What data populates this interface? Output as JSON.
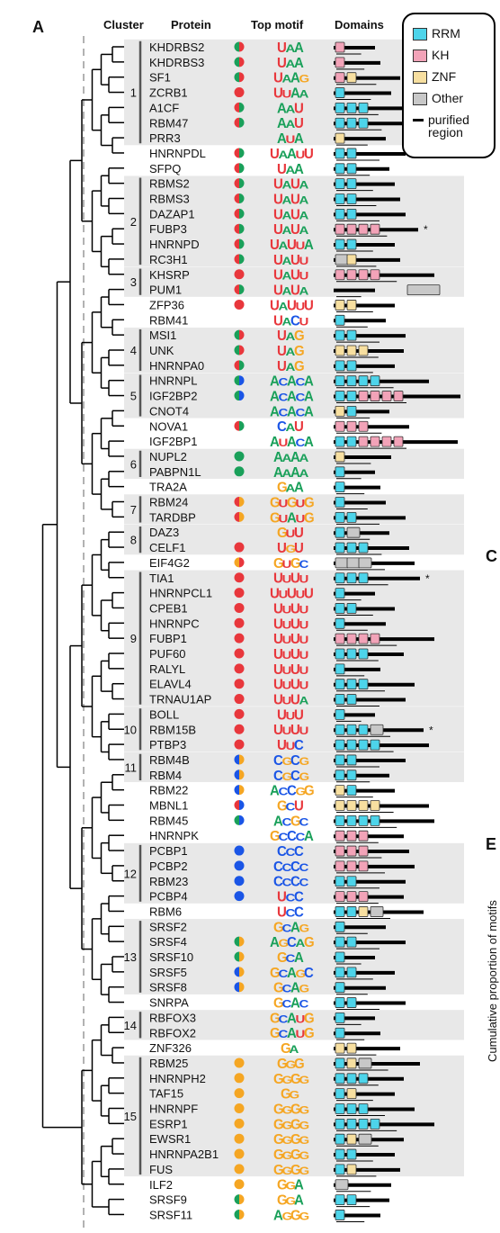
{
  "panels": {
    "a": "A",
    "c": "C",
    "e": "E"
  },
  "headers": {
    "cluster": "Cluster",
    "protein": "Protein",
    "motif": "Top motif",
    "domains": "Domains"
  },
  "legend": [
    {
      "key": "RRM",
      "label": "RRM",
      "color": "#4dd4ea"
    },
    {
      "key": "KH",
      "label": "KH",
      "color": "#f2a3b8"
    },
    {
      "key": "ZNF",
      "label": "ZNF",
      "color": "#f7dfa0"
    },
    {
      "key": "Other",
      "label": "Other",
      "color": "#c8c8c8"
    },
    {
      "key": "region",
      "label": "purified\nregion",
      "color": "#000000"
    }
  ],
  "right_axis_label": "Cumulative proportion of motifs",
  "dot_colors": {
    "r": "#e8373c",
    "g": "#1aa05a",
    "b": "#1a55e6",
    "o": "#f5a623"
  },
  "domain_colors": {
    "R": "#4dd4ea",
    "K": "#f2a3b8",
    "Z": "#f7dfa0",
    "O": "#c8c8c8",
    "P": "#c8c8c8"
  },
  "proteins": [
    {
      "name": "KHDRBS2",
      "motif": "UAA",
      "dots": [
        "g",
        "r"
      ],
      "dom": "K",
      "cluster": 1
    },
    {
      "name": "KHDRBS3",
      "motif": "UAA",
      "dots": [
        "g",
        "r"
      ],
      "dom": "K",
      "cluster": 1
    },
    {
      "name": "SF1",
      "motif": "UAAG",
      "dots": [
        "g",
        "r"
      ],
      "dom": "KZ",
      "cluster": 1
    },
    {
      "name": "ZCRB1",
      "motif": "UUAA",
      "dots": [
        "r",
        "r"
      ],
      "dom": "R",
      "cluster": 1
    },
    {
      "name": "A1CF",
      "motif": "AAU",
      "dots": [
        "r",
        "g"
      ],
      "dom": "RRR",
      "cluster": 1
    },
    {
      "name": "RBM47",
      "motif": "AAU",
      "dots": [
        "r",
        "g"
      ],
      "dom": "RRR",
      "cluster": 1
    },
    {
      "name": "PRR3",
      "motif": "AUA",
      "dots": [],
      "dom": "Z",
      "cluster": 1
    },
    {
      "name": "HNRNPDL",
      "motif": "UAAUU",
      "dots": [
        "r",
        "g"
      ],
      "dom": "RR",
      "cluster": 0
    },
    {
      "name": "SFPQ",
      "motif": "UAA",
      "dots": [
        "r",
        "g"
      ],
      "dom": "RR",
      "cluster": 0
    },
    {
      "name": "RBMS2",
      "motif": "UAUA",
      "dots": [
        "r",
        "g"
      ],
      "dom": "RR",
      "cluster": 2
    },
    {
      "name": "RBMS3",
      "motif": "UAUA",
      "dots": [
        "r",
        "g"
      ],
      "dom": "RR",
      "cluster": 2
    },
    {
      "name": "DAZAP1",
      "motif": "UAUA",
      "dots": [
        "r",
        "g"
      ],
      "dom": "RR",
      "cluster": 2
    },
    {
      "name": "FUBP3",
      "motif": "UAUA",
      "dots": [
        "r",
        "g"
      ],
      "dom": "KKKK",
      "cluster": 2,
      "star": true
    },
    {
      "name": "HNRNPD",
      "motif": "UAUUA",
      "dots": [
        "r",
        "g"
      ],
      "dom": "RR",
      "cluster": 2
    },
    {
      "name": "RC3H1",
      "motif": "UAUU",
      "dots": [
        "r",
        "g"
      ],
      "dom": "OZ",
      "cluster": 2
    },
    {
      "name": "KHSRP",
      "motif": "UAUU",
      "dots": [
        "r"
      ],
      "dom": "KKKK",
      "cluster": 3
    },
    {
      "name": "PUM1",
      "motif": "UAUA",
      "dots": [
        "r",
        "g"
      ],
      "dom": "P",
      "cluster": 3
    },
    {
      "name": "ZFP36",
      "motif": "UAUUU",
      "dots": [
        "r"
      ],
      "dom": "ZZ",
      "cluster": 0
    },
    {
      "name": "RBM41",
      "motif": "UACU",
      "dots": [],
      "dom": "R",
      "cluster": 0
    },
    {
      "name": "MSI1",
      "motif": "UAG",
      "dots": [
        "g",
        "r"
      ],
      "dom": "RR",
      "cluster": 4
    },
    {
      "name": "UNK",
      "motif": "UAG",
      "dots": [
        "g",
        "r"
      ],
      "dom": "ZZZ",
      "cluster": 4
    },
    {
      "name": "HNRNPA0",
      "motif": "UAG",
      "dots": [
        "r",
        "g"
      ],
      "dom": "RR",
      "cluster": 4
    },
    {
      "name": "HNRNPL",
      "motif": "ACACA",
      "dots": [
        "g",
        "b"
      ],
      "dom": "RRRR",
      "cluster": 5
    },
    {
      "name": "IGF2BP2",
      "motif": "ACACA",
      "dots": [
        "g",
        "b"
      ],
      "dom": "RRKKKK",
      "cluster": 5
    },
    {
      "name": "CNOT4",
      "motif": "ACACA",
      "dots": [],
      "dom": "ZR",
      "cluster": 5
    },
    {
      "name": "NOVA1",
      "motif": "CAU",
      "dots": [
        "r",
        "g"
      ],
      "dom": "KKK",
      "cluster": 0
    },
    {
      "name": "IGF2BP1",
      "motif": "AUACA",
      "dots": [],
      "dom": "RRKKKK",
      "cluster": 0
    },
    {
      "name": "NUPL2",
      "motif": "AAAA",
      "dots": [
        "g"
      ],
      "dom": "Z",
      "cluster": 6
    },
    {
      "name": "PABPN1L",
      "motif": "AAAA",
      "dots": [
        "g"
      ],
      "dom": "R",
      "cluster": 6
    },
    {
      "name": "TRA2A",
      "motif": "GAA",
      "dots": [],
      "dom": "R",
      "cluster": 0
    },
    {
      "name": "RBM24",
      "motif": "GUGUG",
      "dots": [
        "r",
        "o"
      ],
      "dom": "R",
      "cluster": 7
    },
    {
      "name": "TARDBP",
      "motif": "GUAUG",
      "dots": [
        "r",
        "o"
      ],
      "dom": "RR",
      "cluster": 7
    },
    {
      "name": "DAZ3",
      "motif": "GUU",
      "dots": [],
      "dom": "RO",
      "cluster": 8
    },
    {
      "name": "CELF1",
      "motif": "UGU",
      "dots": [
        "r"
      ],
      "dom": "RRR",
      "cluster": 8
    },
    {
      "name": "EIF4G2",
      "motif": "GUGC",
      "dots": [
        "o",
        "r"
      ],
      "dom": "OOO",
      "cluster": 0
    },
    {
      "name": "TIA1",
      "motif": "UUUU",
      "dots": [
        "r"
      ],
      "dom": "RRR",
      "cluster": 9,
      "star": true
    },
    {
      "name": "HNRNPCL1",
      "motif": "UUUUU",
      "dots": [
        "r"
      ],
      "dom": "R",
      "cluster": 9
    },
    {
      "name": "CPEB1",
      "motif": "UUUU",
      "dots": [
        "r"
      ],
      "dom": "RR",
      "cluster": 9
    },
    {
      "name": "HNRNPC",
      "motif": "UUUU",
      "dots": [
        "r"
      ],
      "dom": "R",
      "cluster": 9
    },
    {
      "name": "FUBP1",
      "motif": "UUUU",
      "dots": [
        "r"
      ],
      "dom": "KKKK",
      "cluster": 9
    },
    {
      "name": "PUF60",
      "motif": "UUUU",
      "dots": [
        "r"
      ],
      "dom": "RRR",
      "cluster": 9
    },
    {
      "name": "RALYL",
      "motif": "UUUU",
      "dots": [
        "r"
      ],
      "dom": "R",
      "cluster": 9
    },
    {
      "name": "ELAVL4",
      "motif": "UUUU",
      "dots": [
        "r"
      ],
      "dom": "RRR",
      "cluster": 9
    },
    {
      "name": "TRNAU1AP",
      "motif": "UUUA",
      "dots": [
        "r"
      ],
      "dom": "RR",
      "cluster": 9
    },
    {
      "name": "BOLL",
      "motif": "UUU",
      "dots": [
        "r"
      ],
      "dom": "R",
      "cluster": 10
    },
    {
      "name": "RBM15B",
      "motif": "UUUU",
      "dots": [
        "r"
      ],
      "dom": "RRRO",
      "cluster": 10,
      "star": true
    },
    {
      "name": "PTBP3",
      "motif": "UUC",
      "dots": [
        "r"
      ],
      "dom": "RRRR",
      "cluster": 10
    },
    {
      "name": "RBM4B",
      "motif": "CGCG",
      "dots": [
        "b",
        "o"
      ],
      "dom": "RR",
      "cluster": 11
    },
    {
      "name": "RBM4",
      "motif": "CGCG",
      "dots": [
        "b",
        "o"
      ],
      "dom": "RR",
      "cluster": 11
    },
    {
      "name": "RBM22",
      "motif": "ACCGG",
      "dots": [
        "b",
        "o"
      ],
      "dom": "ZR",
      "cluster": 0
    },
    {
      "name": "MBNL1",
      "motif": "GCU",
      "dots": [
        "r",
        "b"
      ],
      "dom": "ZZZZ",
      "cluster": 0
    },
    {
      "name": "RBM45",
      "motif": "ACGC",
      "dots": [
        "g",
        "b"
      ],
      "dom": "RRRR",
      "cluster": 0
    },
    {
      "name": "HNRNPK",
      "motif": "GCCCA",
      "dots": [],
      "dom": "KKK",
      "cluster": 0
    },
    {
      "name": "PCBP1",
      "motif": "CCC",
      "dots": [
        "b"
      ],
      "dom": "KKK",
      "cluster": 12
    },
    {
      "name": "PCBP2",
      "motif": "CCCC",
      "dots": [
        "b"
      ],
      "dom": "KKK",
      "cluster": 12
    },
    {
      "name": "RBM23",
      "motif": "CCCC",
      "dots": [
        "b"
      ],
      "dom": "RR",
      "cluster": 12
    },
    {
      "name": "PCBP4",
      "motif": "UCC",
      "dots": [
        "b"
      ],
      "dom": "KKK",
      "cluster": 12
    },
    {
      "name": "RBM6",
      "motif": "UCC",
      "dots": [],
      "dom": "RRZO",
      "cluster": 0
    },
    {
      "name": "SRSF2",
      "motif": "GCAG",
      "dots": [],
      "dom": "R",
      "cluster": 13
    },
    {
      "name": "SRSF4",
      "motif": "AGCAG",
      "dots": [
        "g",
        "o"
      ],
      "dom": "RR",
      "cluster": 13
    },
    {
      "name": "SRSF10",
      "motif": "GCA",
      "dots": [
        "g",
        "o"
      ],
      "dom": "R",
      "cluster": 13
    },
    {
      "name": "SRSF5",
      "motif": "GCAGC",
      "dots": [
        "b",
        "o"
      ],
      "dom": "RR",
      "cluster": 13
    },
    {
      "name": "SRSF8",
      "motif": "GCAG",
      "dots": [
        "b",
        "o"
      ],
      "dom": "R",
      "cluster": 13
    },
    {
      "name": "SNRPA",
      "motif": "GCAC",
      "dots": [],
      "dom": "RR",
      "cluster": 0
    },
    {
      "name": "RBFOX3",
      "motif": "GCAUG",
      "dots": [],
      "dom": "R",
      "cluster": 14
    },
    {
      "name": "RBFOX2",
      "motif": "GCAUG",
      "dots": [],
      "dom": "R",
      "cluster": 14
    },
    {
      "name": "ZNF326",
      "motif": "GA",
      "dots": [],
      "dom": "ZZ",
      "cluster": 0
    },
    {
      "name": "RBM25",
      "motif": "GGG",
      "dots": [
        "o"
      ],
      "dom": "RZO",
      "cluster": 15
    },
    {
      "name": "HNRNPH2",
      "motif": "GGGG",
      "dots": [
        "o"
      ],
      "dom": "RRR",
      "cluster": 15
    },
    {
      "name": "TAF15",
      "motif": "GG",
      "dots": [
        "o"
      ],
      "dom": "RZ",
      "cluster": 15
    },
    {
      "name": "HNRNPF",
      "motif": "GGGG",
      "dots": [
        "o"
      ],
      "dom": "RRR",
      "cluster": 15
    },
    {
      "name": "ESRP1",
      "motif": "GGGG",
      "dots": [
        "o"
      ],
      "dom": "RRRR",
      "cluster": 15
    },
    {
      "name": "EWSR1",
      "motif": "GGGG",
      "dots": [
        "o"
      ],
      "dom": "RZO",
      "cluster": 15
    },
    {
      "name": "HNRNPA2B1",
      "motif": "GGGG",
      "dots": [
        "o"
      ],
      "dom": "RR",
      "cluster": 15
    },
    {
      "name": "FUS",
      "motif": "GGGG",
      "dots": [
        "o"
      ],
      "dom": "RZ",
      "cluster": 15
    },
    {
      "name": "ILF2",
      "motif": "GGA",
      "dots": [
        "o"
      ],
      "dom": "O",
      "cluster": 0
    },
    {
      "name": "SRSF9",
      "motif": "GGA",
      "dots": [
        "g",
        "o"
      ],
      "dom": "RR",
      "cluster": 0
    },
    {
      "name": "SRSF11",
      "motif": "AGGG",
      "dots": [
        "g",
        "o"
      ],
      "dom": "R",
      "cluster": 0
    }
  ]
}
